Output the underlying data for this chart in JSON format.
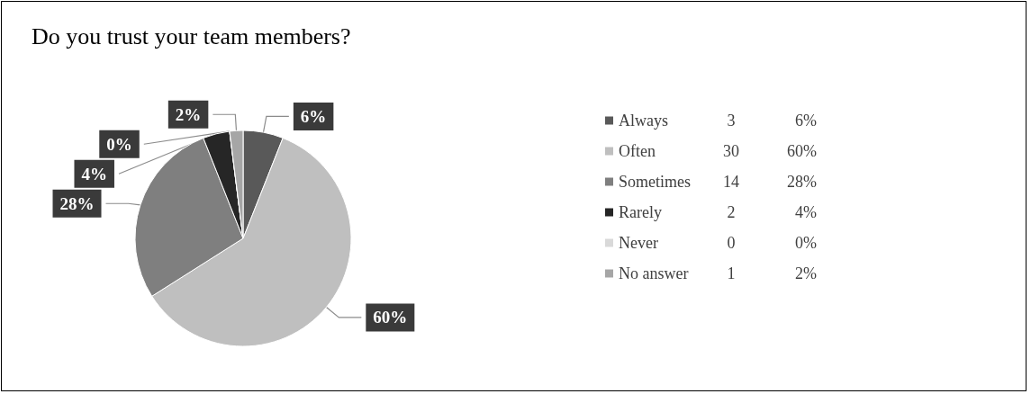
{
  "chart_data": {
    "type": "pie",
    "title": "Do you trust your team members?",
    "categories": [
      "Always",
      "Often",
      "Sometimes",
      "Rarely",
      "Never",
      "No answer"
    ],
    "values": [
      6,
      60,
      28,
      4,
      0,
      2
    ],
    "annotations": [
      "3",
      "30",
      "14",
      "2",
      "0",
      "1"
    ],
    "value_labels": [
      "6%",
      "60%",
      "28%",
      "4%",
      "0%",
      "2%"
    ],
    "colors": [
      "#595959",
      "#bfbfbf",
      "#7f7f7f",
      "#262626",
      "#d9d9d9",
      "#a6a6a6"
    ],
    "legend": "right"
  }
}
